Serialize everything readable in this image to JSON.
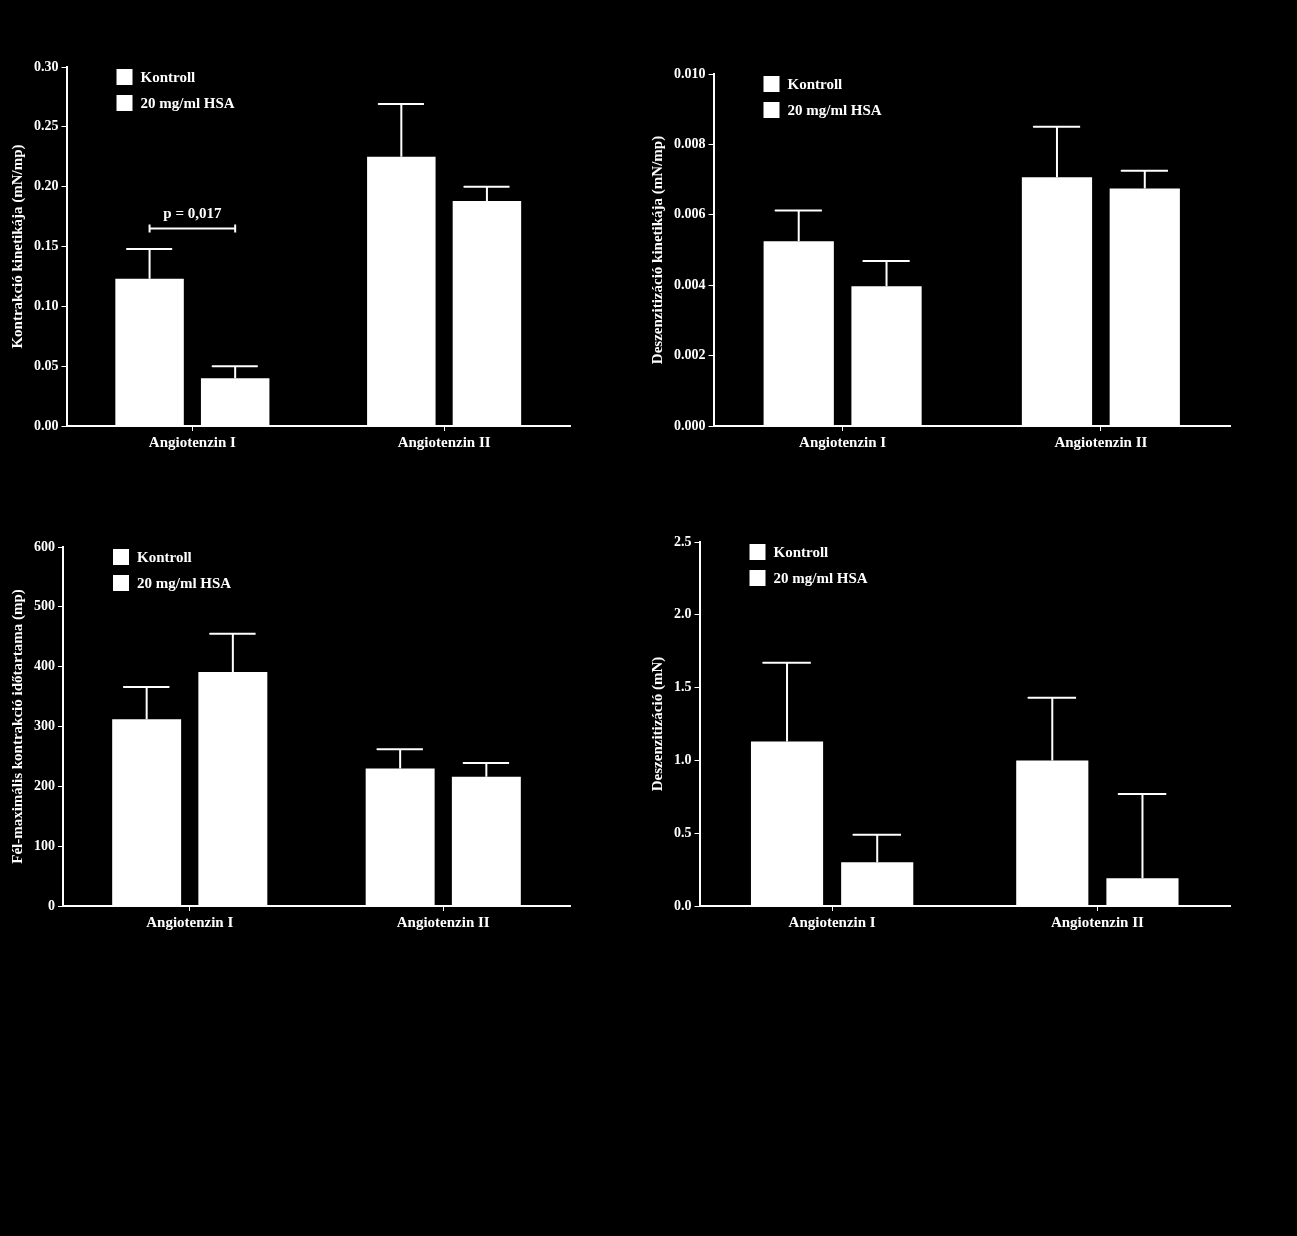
{
  "chart_data": [
    {
      "type": "bar",
      "ylabel": "Kontrakció kinetikája (mN/mp)",
      "categories": [
        "Angiotenzin I",
        "Angiotenzin II"
      ],
      "series": [
        {
          "name": "Kontroll",
          "color": "#ffffff",
          "values": [
            0.123,
            0.225
          ],
          "errors": [
            [
              0.123,
              0.148
            ],
            [
              0.225,
              0.269
            ]
          ]
        },
        {
          "name": "20 mg/ml HSA",
          "color": "#ffffff",
          "values": [
            0.04,
            0.188
          ],
          "errors": [
            [
              0.04,
              0.05
            ],
            [
              0.188,
              0.2
            ]
          ]
        }
      ],
      "ylim": [
        0,
        0.3
      ],
      "yticks": [
        {
          "value": 0,
          "label": "0.00"
        },
        {
          "value": 0.05,
          "label": "0.05"
        },
        {
          "value": 0.1,
          "label": "0.10"
        },
        {
          "value": 0.15,
          "label": "0.15"
        },
        {
          "value": 0.2,
          "label": "0.20"
        },
        {
          "value": 0.25,
          "label": "0.25"
        },
        {
          "value": 0.3,
          "label": "0.30"
        }
      ],
      "annotations": [
        "p = 0,017"
      ],
      "grid": false,
      "legend": "top left"
    },
    {
      "type": "bar",
      "ylabel": "Deszenzitizáció kinetikája (mN/mp)",
      "categories": [
        "Angiotenzin I",
        "Angiotenzin II"
      ],
      "series": [
        {
          "name": "Kontroll",
          "color": "#ffffff",
          "values": [
            0.00525,
            0.00707
          ],
          "errors": [
            [
              0.00525,
              0.00612
            ],
            [
              0.00707,
              0.0085
            ]
          ]
        },
        {
          "name": "20 mg/ml HSA",
          "color": "#ffffff",
          "values": [
            0.00397,
            0.00675
          ],
          "errors": [
            [
              0.00397,
              0.00469
            ],
            [
              0.00675,
              0.00725
            ]
          ]
        }
      ],
      "ylim": [
        0,
        0.01
      ],
      "yticks": [
        {
          "value": 0,
          "label": "0.000"
        },
        {
          "value": 0.002,
          "label": "0.002"
        },
        {
          "value": 0.004,
          "label": "0.004"
        },
        {
          "value": 0.006,
          "label": "0.006"
        },
        {
          "value": 0.008,
          "label": "0.008"
        },
        {
          "value": 0.01,
          "label": "0.010"
        }
      ],
      "grid": false,
      "legend": "top left"
    },
    {
      "type": "bar",
      "ylabel": "Fél-maximális kontrakció időtartama (mp)",
      "categories": [
        "Angiotenzin I",
        "Angiotenzin II"
      ],
      "series": [
        {
          "name": "Kontroll",
          "color": "#ffffff",
          "values": [
            312,
            230
          ],
          "errors": [
            [
              312,
              366
            ],
            [
              230,
              262
            ]
          ]
        },
        {
          "name": "20 mg/ml HSA",
          "color": "#ffffff",
          "values": [
            391,
            216
          ],
          "errors": [
            [
              391,
              455
            ],
            [
              216,
              239
            ]
          ]
        }
      ],
      "ylim": [
        0,
        600
      ],
      "yticks": [
        0,
        100,
        200,
        300,
        400,
        500,
        600
      ],
      "grid": false,
      "legend": "top left"
    },
    {
      "type": "bar",
      "ylabel": "Deszenzitizáció (mN)",
      "categories": [
        "Angiotenzin I",
        "Angiotenzin II"
      ],
      "series": [
        {
          "name": "Kontroll",
          "color": "#ffffff",
          "values": [
            1.13,
            1.0
          ],
          "errors": [
            [
              1.13,
              1.67
            ],
            [
              1.0,
              1.43
            ]
          ]
        },
        {
          "name": "20 mg/ml HSA",
          "color": "#ffffff",
          "values": [
            0.3,
            0.19
          ],
          "errors": [
            [
              0.3,
              0.49
            ],
            [
              0.19,
              0.77
            ]
          ]
        }
      ],
      "ylim": [
        0,
        2.5
      ],
      "yticks": [
        {
          "value": 0,
          "label": "0.0"
        },
        {
          "value": 0.5,
          "label": "0.5"
        },
        {
          "value": 1,
          "label": "1.0"
        },
        {
          "value": 1.5,
          "label": "1.5"
        },
        {
          "value": 2,
          "label": "2.0"
        },
        {
          "value": 2.5,
          "label": "2.5"
        }
      ],
      "grid": false,
      "legend": "top left"
    }
  ]
}
